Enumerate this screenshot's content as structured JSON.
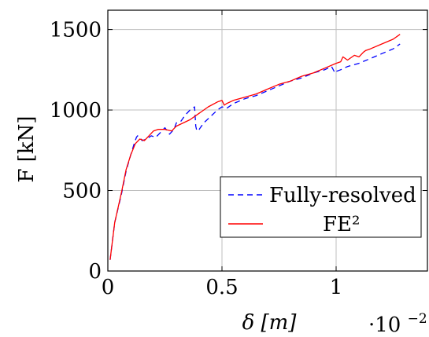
{
  "chart_data": {
    "type": "line",
    "xlabel": "δ [m]",
    "ylabel": "F [kN]",
    "x_scale_label": "·10",
    "x_scale_exponent": "−2",
    "xlim": [
      0,
      1.4
    ],
    "ylim": [
      0,
      1620
    ],
    "xticks": [
      0,
      0.5,
      1
    ],
    "xtick_labels": [
      "0",
      "0.5",
      "1"
    ],
    "yticks": [
      0,
      500,
      1000,
      1500
    ],
    "ytick_labels": [
      "0",
      "500",
      "1000",
      "1500"
    ],
    "grid": true,
    "legend_position": "bottom-right",
    "series": [
      {
        "name": "Fully-resolved",
        "style": "dashed",
        "color": "#0000ff",
        "x": [
          0.01,
          0.03,
          0.06,
          0.08,
          0.1,
          0.115,
          0.125,
          0.13,
          0.14,
          0.15,
          0.17,
          0.19,
          0.21,
          0.23,
          0.25,
          0.27,
          0.29,
          0.3,
          0.32,
          0.34,
          0.36,
          0.38,
          0.385,
          0.39,
          0.4,
          0.42,
          0.45,
          0.48,
          0.5,
          0.52,
          0.55,
          0.6,
          0.65,
          0.7,
          0.75,
          0.8,
          0.85,
          0.9,
          0.95,
          0.98,
          0.995,
          1.0,
          1.02,
          1.05,
          1.1,
          1.15,
          1.2,
          1.25,
          1.28
        ],
        "y": [
          70,
          300,
          480,
          620,
          720,
          790,
          830,
          840,
          830,
          810,
          820,
          840,
          830,
          860,
          890,
          850,
          880,
          920,
          930,
          970,
          1000,
          1020,
          900,
          870,
          880,
          920,
          960,
          1000,
          1020,
          1010,
          1040,
          1070,
          1090,
          1120,
          1150,
          1180,
          1200,
          1230,
          1250,
          1270,
          1230,
          1240,
          1250,
          1270,
          1290,
          1320,
          1350,
          1380,
          1410
        ]
      },
      {
        "name": "FE²",
        "style": "solid",
        "color": "#ff0000",
        "x": [
          0.01,
          0.03,
          0.06,
          0.08,
          0.1,
          0.12,
          0.14,
          0.16,
          0.18,
          0.2,
          0.22,
          0.25,
          0.28,
          0.3,
          0.33,
          0.36,
          0.4,
          0.44,
          0.48,
          0.5,
          0.51,
          0.52,
          0.55,
          0.6,
          0.65,
          0.7,
          0.75,
          0.8,
          0.85,
          0.9,
          0.95,
          1.0,
          1.02,
          1.03,
          1.05,
          1.08,
          1.1,
          1.12,
          1.13,
          1.15,
          1.2,
          1.25,
          1.28
        ],
        "y": [
          70,
          300,
          490,
          630,
          720,
          790,
          820,
          810,
          840,
          870,
          880,
          880,
          870,
          900,
          920,
          940,
          980,
          1020,
          1050,
          1060,
          1030,
          1040,
          1060,
          1080,
          1100,
          1130,
          1160,
          1180,
          1210,
          1230,
          1260,
          1290,
          1300,
          1330,
          1310,
          1340,
          1330,
          1360,
          1370,
          1380,
          1410,
          1440,
          1470
        ]
      }
    ]
  }
}
